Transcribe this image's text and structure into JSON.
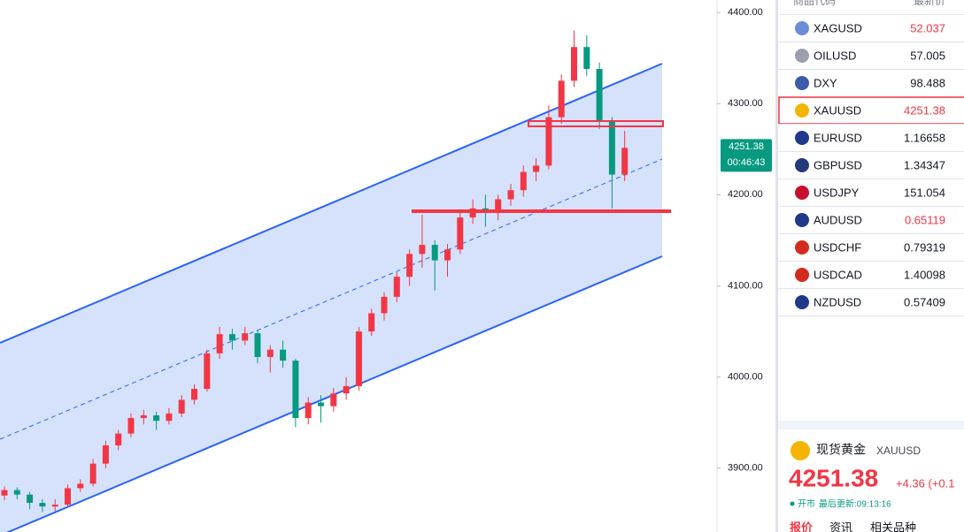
{
  "chart_data": {
    "type": "candlestick",
    "ohlc": [
      [
        3870,
        3880,
        3865,
        3876
      ],
      [
        3876,
        3879,
        3866,
        3871
      ],
      [
        3871,
        3874,
        3855,
        3862
      ],
      [
        3862,
        3866,
        3852,
        3858
      ],
      [
        3858,
        3866,
        3853,
        3860
      ],
      [
        3860,
        3882,
        3857,
        3878
      ],
      [
        3878,
        3888,
        3874,
        3883
      ],
      [
        3883,
        3910,
        3880,
        3905
      ],
      [
        3905,
        3930,
        3900,
        3925
      ],
      [
        3925,
        3942,
        3920,
        3938
      ],
      [
        3938,
        3960,
        3934,
        3955
      ],
      [
        3955,
        3964,
        3948,
        3958
      ],
      [
        3958,
        3962,
        3942,
        3952
      ],
      [
        3952,
        3966,
        3948,
        3960
      ],
      [
        3960,
        3980,
        3956,
        3975
      ],
      [
        3975,
        3992,
        3970,
        3987
      ],
      [
        3987,
        4030,
        3984,
        4026
      ],
      [
        4026,
        4055,
        4020,
        4047
      ],
      [
        4047,
        4053,
        4030,
        4040
      ],
      [
        4040,
        4055,
        4035,
        4048
      ],
      [
        4048,
        4052,
        4015,
        4022
      ],
      [
        4022,
        4035,
        4005,
        4030
      ],
      [
        4030,
        4040,
        4010,
        4018
      ],
      [
        4018,
        4020,
        3945,
        3955
      ],
      [
        3955,
        3978,
        3948,
        3972
      ],
      [
        3972,
        3980,
        3950,
        3968
      ],
      [
        3968,
        3988,
        3962,
        3982
      ],
      [
        3982,
        4000,
        3975,
        3990
      ],
      [
        3990,
        4055,
        3985,
        4050
      ],
      [
        4050,
        4075,
        4045,
        4070
      ],
      [
        4070,
        4093,
        4062,
        4088
      ],
      [
        4088,
        4115,
        4082,
        4110
      ],
      [
        4110,
        4140,
        4100,
        4135
      ],
      [
        4135,
        4178,
        4120,
        4145
      ],
      [
        4145,
        4150,
        4095,
        4128
      ],
      [
        4128,
        4146,
        4110,
        4140
      ],
      [
        4140,
        4182,
        4135,
        4175
      ],
      [
        4175,
        4195,
        4168,
        4185
      ],
      [
        4185,
        4200,
        4165,
        4180
      ],
      [
        4180,
        4200,
        4172,
        4195
      ],
      [
        4195,
        4212,
        4188,
        4205
      ],
      [
        4205,
        4232,
        4198,
        4225
      ],
      [
        4225,
        4240,
        4215,
        4232
      ],
      [
        4232,
        4298,
        4228,
        4285
      ],
      [
        4285,
        4332,
        4278,
        4325
      ],
      [
        4325,
        4380,
        4318,
        4362
      ],
      [
        4362,
        4375,
        4330,
        4338
      ],
      [
        4338,
        4345,
        4272,
        4280
      ],
      [
        4280,
        4285,
        4185,
        4222
      ],
      [
        4222,
        4270,
        4215,
        4251.38
      ]
    ],
    "up_color": "#f23645",
    "down_color": "#089981",
    "ylim": [
      3830,
      4413.6
    ],
    "yticks": [
      {
        "value": 3900,
        "label": "3900.00"
      },
      {
        "value": 4000,
        "label": "4000.00"
      },
      {
        "value": 4100,
        "label": "4100.00"
      },
      {
        "value": 4200,
        "label": "4200.00"
      },
      {
        "value": 4300,
        "label": "4300.00"
      },
      {
        "value": 4400,
        "label": "4400.00"
      }
    ],
    "last_price": {
      "value": 4251.38,
      "label": "4251.38"
    },
    "countdown": "00:46:43"
  },
  "watchlist": {
    "headers": [
      "商品代码",
      "最新价"
    ],
    "rows": [
      {
        "symbol": "XAGUSD",
        "price": "52.037",
        "color": "#f23645"
      },
      {
        "symbol": "OILUSD",
        "price": "57.005",
        "color": "#131722"
      },
      {
        "symbol": "DXY",
        "price": "98.488",
        "color": "#131722"
      },
      {
        "symbol": "XAUUSD",
        "price": "4251.38",
        "color": "#f23645"
      },
      {
        "symbol": "EURUSD",
        "price": "1.16658",
        "color": "#131722"
      },
      {
        "symbol": "GBPUSD",
        "price": "1.34347",
        "color": "#131722"
      },
      {
        "symbol": "USDJPY",
        "price": "151.054",
        "color": "#131722"
      },
      {
        "symbol": "AUDUSD",
        "price": "0.65119",
        "color": "#f23645"
      },
      {
        "symbol": "USDCHF",
        "price": "0.79319",
        "color": "#131722"
      },
      {
        "symbol": "USDCAD",
        "price": "1.40098",
        "color": "#131722"
      },
      {
        "symbol": "NZDUSD",
        "price": "0.57409",
        "color": "#131722"
      }
    ]
  },
  "detail": {
    "name": "现货黄金",
    "symbol": "XAUUSD",
    "price": "4251.38",
    "change": "+4.36 (+0.1",
    "status": "开市",
    "updated": "最后更新:09:13:16",
    "tabs": [
      "报价",
      "资讯",
      "相关品种"
    ]
  }
}
